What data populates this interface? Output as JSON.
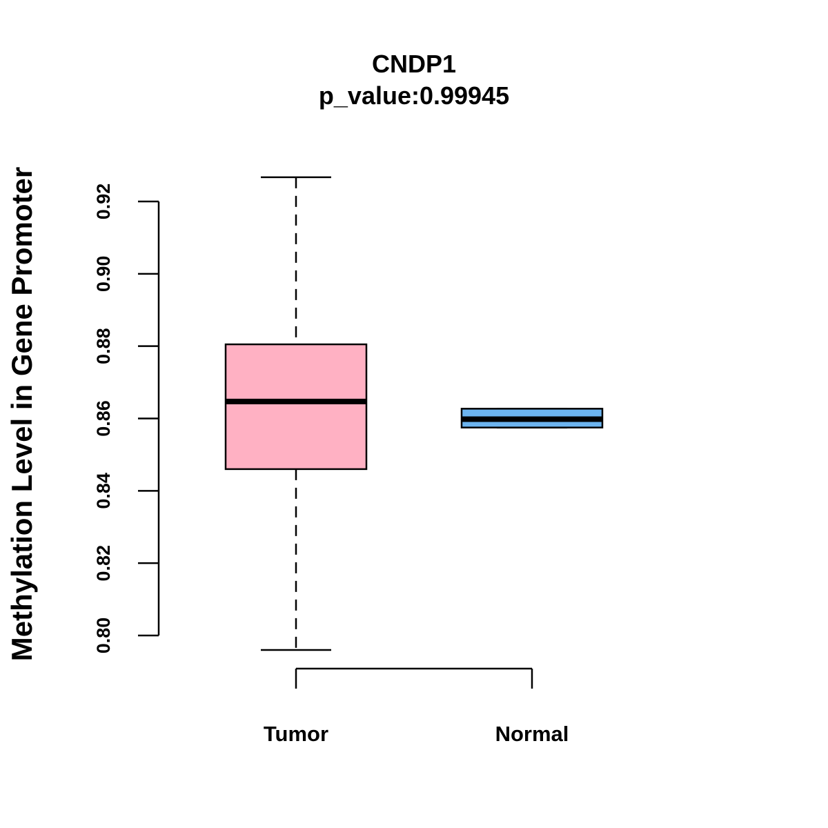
{
  "chart_data": {
    "type": "boxplot",
    "title": "CNDP1",
    "subtitle": "p_value:0.99945",
    "xlabel": "",
    "ylabel": "Methylation Level in Gene Promoter",
    "ylim": [
      0.8,
      0.92
    ],
    "yticks": [
      "0.80",
      "0.82",
      "0.84",
      "0.86",
      "0.88",
      "0.90",
      "0.92"
    ],
    "categories": [
      "Tumor",
      "Normal"
    ],
    "boxes": [
      {
        "name": "Tumor",
        "whisker_low": 0.796,
        "q1": 0.846,
        "median": 0.8647,
        "q3": 0.8805,
        "whisker_high": 0.9267,
        "color": "#FFB1C3"
      },
      {
        "name": "Normal",
        "whisker_low": 0.8575,
        "q1": 0.8575,
        "median": 0.8598,
        "q3": 0.8627,
        "whisker_high": 0.8627,
        "color": "#6CB4EF"
      }
    ]
  }
}
